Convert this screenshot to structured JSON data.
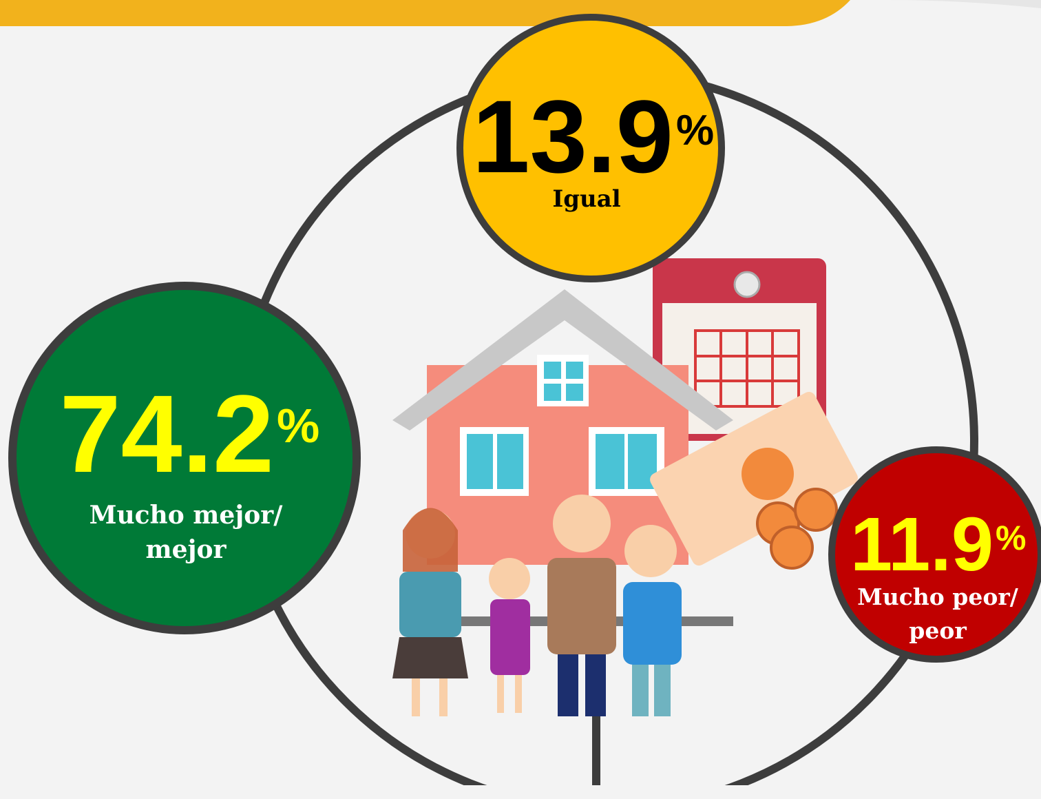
{
  "items": [
    {
      "value": 13.9,
      "unit": "%",
      "label": [
        "Igual"
      ]
    },
    {
      "value": 74.2,
      "unit": "%",
      "label": [
        "Mucho mejor/",
        "mejor"
      ]
    },
    {
      "value": 11.9,
      "unit": "%",
      "label": [
        "Mucho peor/",
        "peor"
      ]
    }
  ]
}
